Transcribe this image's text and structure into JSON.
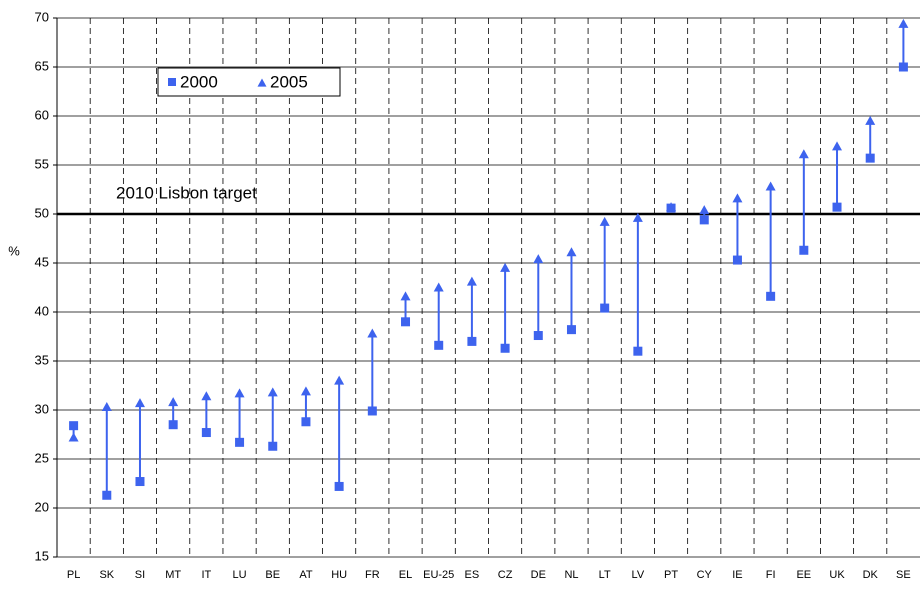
{
  "chart_data": {
    "type": "dumbbell",
    "y_label": "%",
    "categories": [
      "PL",
      "SK",
      "SI",
      "MT",
      "IT",
      "LU",
      "BE",
      "AT",
      "HU",
      "FR",
      "EL",
      "EU-25",
      "ES",
      "CZ",
      "DE",
      "NL",
      "LT",
      "LV",
      "PT",
      "CY",
      "IE",
      "FI",
      "EE",
      "UK",
      "DK",
      "SE"
    ],
    "series": [
      {
        "name": "2000",
        "color": "#3d63ee",
        "marker": "square",
        "values": [
          28.4,
          21.3,
          22.7,
          28.5,
          27.7,
          26.7,
          26.3,
          28.8,
          22.2,
          29.9,
          39.0,
          36.6,
          37.0,
          36.3,
          37.6,
          38.2,
          40.4,
          36.0,
          50.6,
          49.4,
          45.3,
          41.6,
          46.3,
          50.7,
          55.7,
          65.0
        ]
      },
      {
        "name": "2005",
        "color": "#3d63ee",
        "marker": "triangle",
        "values": [
          27.2,
          30.3,
          30.7,
          30.8,
          31.4,
          31.7,
          31.8,
          31.9,
          33.0,
          37.8,
          41.6,
          42.5,
          43.1,
          44.5,
          45.4,
          46.1,
          49.2,
          49.6,
          50.7,
          50.4,
          51.6,
          52.8,
          56.1,
          56.9,
          59.5,
          69.4
        ]
      }
    ],
    "target": {
      "value": 50,
      "label": "2010 Lisbon target"
    },
    "ylim": [
      15,
      70
    ],
    "yticks": [
      15,
      20,
      25,
      30,
      35,
      40,
      45,
      50,
      55,
      60,
      65,
      70
    ],
    "grid": true
  }
}
